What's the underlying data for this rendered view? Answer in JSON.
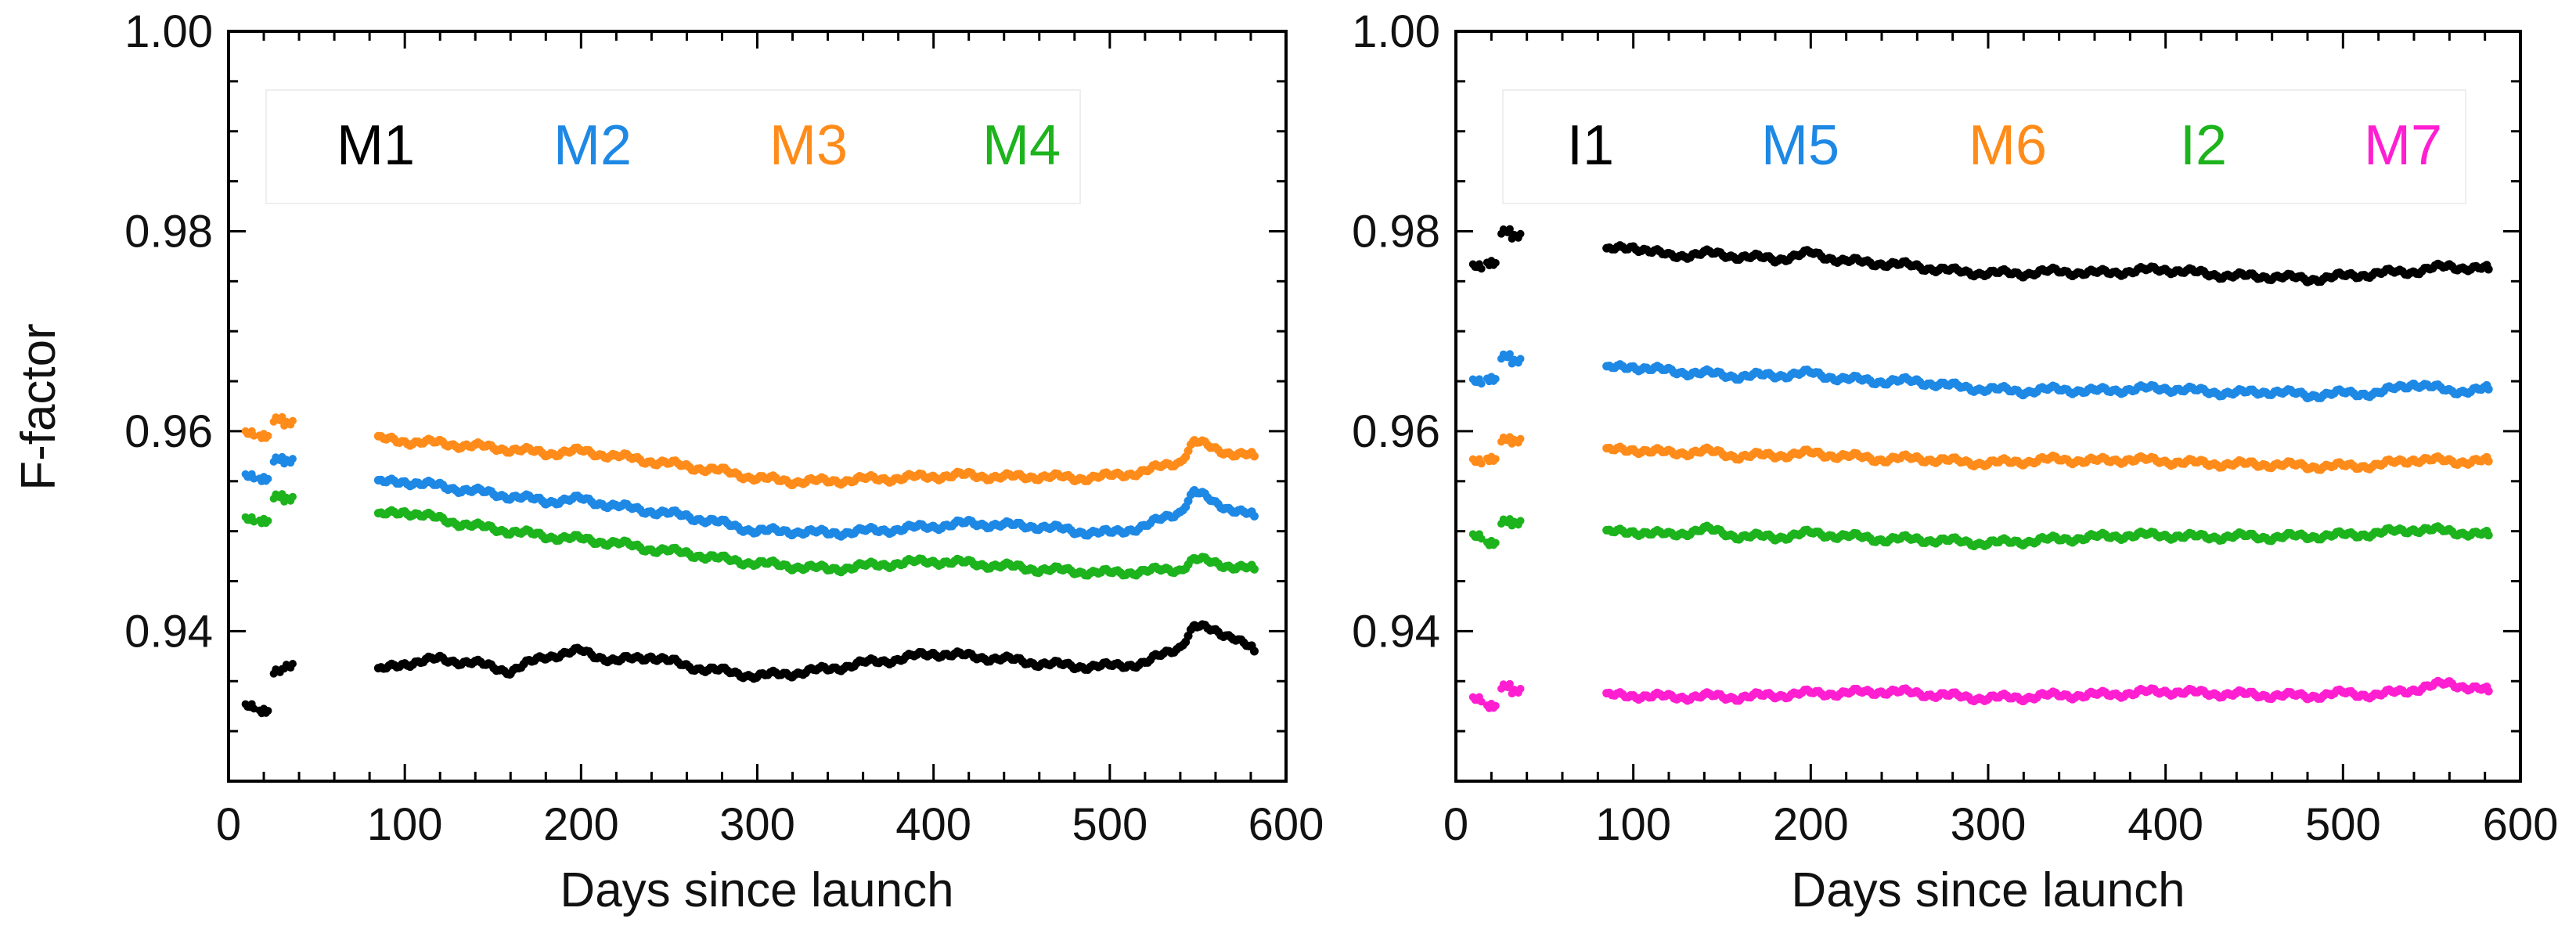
{
  "chart_data": [
    {
      "type": "scatter",
      "panel": "left",
      "title": "",
      "xlabel": "Days since launch",
      "ylabel": "F-factor",
      "xlim": [
        0,
        600
      ],
      "ylim": [
        0.925,
        1.0
      ],
      "xticks": [
        "0",
        "100",
        "200",
        "300",
        "400",
        "500",
        "600"
      ],
      "yticks": [
        "0.94",
        "0.96",
        "0.98",
        "1.00"
      ],
      "legend": {
        "placement": "top",
        "entries": [
          "M1",
          "M2",
          "M3",
          "M4"
        ]
      },
      "series": [
        {
          "name": "M1",
          "color": "#000000",
          "early": [
            [
              12,
              0.9325
            ],
            [
              20,
              0.932
            ],
            [
              28,
              0.936
            ],
            [
              34,
              0.9365
            ]
          ],
          "x": [
            85,
            100,
            120,
            140,
            160,
            180,
            200,
            220,
            240,
            260,
            280,
            300,
            320,
            340,
            360,
            380,
            400,
            420,
            440,
            460,
            480,
            500,
            520,
            540,
            548,
            560,
            570,
            582
          ],
          "y": [
            0.936,
            0.9368,
            0.9372,
            0.9368,
            0.936,
            0.9375,
            0.938,
            0.937,
            0.9375,
            0.9365,
            0.936,
            0.9355,
            0.9358,
            0.9362,
            0.9368,
            0.9372,
            0.9378,
            0.9375,
            0.9372,
            0.9368,
            0.9365,
            0.9365,
            0.9368,
            0.9385,
            0.9405,
            0.94,
            0.9395,
            0.938
          ]
        },
        {
          "name": "M2",
          "color": "#1e88e5",
          "early": [
            [
              12,
              0.9555
            ],
            [
              20,
              0.9552
            ],
            [
              28,
              0.9572
            ],
            [
              34,
              0.957
            ]
          ],
          "x": [
            85,
            100,
            120,
            140,
            160,
            180,
            200,
            220,
            240,
            260,
            280,
            300,
            320,
            340,
            360,
            380,
            400,
            420,
            440,
            460,
            480,
            500,
            520,
            540,
            548,
            560,
            570,
            582
          ],
          "y": [
            0.9548,
            0.955,
            0.9545,
            0.954,
            0.9535,
            0.953,
            0.9532,
            0.9525,
            0.952,
            0.9515,
            0.9508,
            0.95,
            0.95,
            0.9498,
            0.95,
            0.9502,
            0.9505,
            0.9508,
            0.9506,
            0.9505,
            0.95,
            0.9498,
            0.9505,
            0.952,
            0.954,
            0.9528,
            0.9522,
            0.9515
          ]
        },
        {
          "name": "M3",
          "color": "#ff8c1a",
          "early": [
            [
              12,
              0.9598
            ],
            [
              20,
              0.9595
            ],
            [
              28,
              0.9612
            ],
            [
              34,
              0.9608
            ]
          ],
          "x": [
            85,
            100,
            120,
            140,
            160,
            180,
            200,
            220,
            240,
            260,
            280,
            300,
            320,
            340,
            360,
            380,
            400,
            420,
            440,
            460,
            480,
            500,
            520,
            540,
            548,
            560,
            570,
            582
          ],
          "y": [
            0.9592,
            0.959,
            0.9588,
            0.9585,
            0.9582,
            0.9578,
            0.958,
            0.9575,
            0.957,
            0.9565,
            0.956,
            0.9553,
            0.955,
            0.955,
            0.9552,
            0.9553,
            0.9555,
            0.9556,
            0.9554,
            0.9555,
            0.9553,
            0.9555,
            0.956,
            0.957,
            0.959,
            0.9582,
            0.9578,
            0.9575
          ]
        },
        {
          "name": "M4",
          "color": "#1db31d",
          "early": [
            [
              12,
              0.9512
            ],
            [
              20,
              0.951
            ],
            [
              28,
              0.9535
            ],
            [
              34,
              0.9532
            ]
          ],
          "x": [
            85,
            100,
            120,
            140,
            160,
            180,
            200,
            220,
            240,
            260,
            280,
            300,
            320,
            340,
            360,
            380,
            400,
            420,
            440,
            460,
            480,
            500,
            520,
            540,
            548,
            560,
            570,
            582
          ],
          "y": [
            0.9515,
            0.952,
            0.9512,
            0.9505,
            0.95,
            0.9495,
            0.9492,
            0.9488,
            0.9482,
            0.9478,
            0.9472,
            0.9468,
            0.9465,
            0.9462,
            0.9465,
            0.9468,
            0.947,
            0.9468,
            0.9465,
            0.9462,
            0.946,
            0.9458,
            0.946,
            0.9462,
            0.9472,
            0.9468,
            0.9465,
            0.9462
          ]
        }
      ]
    },
    {
      "type": "scatter",
      "panel": "right",
      "title": "",
      "xlabel": "Days since launch",
      "ylabel": "",
      "xlim": [
        0,
        600
      ],
      "ylim": [
        0.925,
        1.0
      ],
      "xticks": [
        "0",
        "100",
        "200",
        "300",
        "400",
        "500",
        "600"
      ],
      "yticks": [
        "0.94",
        "0.96",
        "0.98",
        "1.00"
      ],
      "legend": {
        "placement": "top",
        "entries": [
          "I1",
          "M5",
          "M6",
          "I2",
          "M7"
        ]
      },
      "series": [
        {
          "name": "I1",
          "color": "#000000",
          "early": [
            [
              12,
              0.9765
            ],
            [
              20,
              0.9768
            ],
            [
              28,
              0.98
            ],
            [
              34,
              0.9795
            ]
          ],
          "x": [
            85,
            100,
            120,
            140,
            160,
            180,
            200,
            220,
            240,
            260,
            280,
            300,
            320,
            340,
            360,
            380,
            400,
            420,
            440,
            460,
            480,
            500,
            520,
            540,
            560,
            582
          ],
          "y": [
            0.978,
            0.9785,
            0.9775,
            0.9778,
            0.9775,
            0.9772,
            0.9778,
            0.977,
            0.9768,
            0.9765,
            0.976,
            0.9758,
            0.9758,
            0.976,
            0.9758,
            0.976,
            0.9762,
            0.9758,
            0.9755,
            0.9755,
            0.9752,
            0.9755,
            0.9758,
            0.976,
            0.9765,
            0.9762
          ]
        },
        {
          "name": "M5",
          "color": "#1e88e5",
          "early": [
            [
              12,
              0.965
            ],
            [
              20,
              0.9652
            ],
            [
              28,
              0.9675
            ],
            [
              34,
              0.967
            ]
          ],
          "x": [
            85,
            100,
            120,
            140,
            160,
            180,
            200,
            220,
            240,
            260,
            280,
            300,
            320,
            340,
            360,
            380,
            400,
            420,
            440,
            460,
            480,
            500,
            520,
            540,
            560,
            582
          ],
          "y": [
            0.9662,
            0.9665,
            0.966,
            0.9658,
            0.9655,
            0.9656,
            0.9658,
            0.9652,
            0.965,
            0.965,
            0.9645,
            0.9642,
            0.964,
            0.9642,
            0.964,
            0.9642,
            0.9643,
            0.964,
            0.9638,
            0.964,
            0.9636,
            0.9638,
            0.9638,
            0.9648,
            0.964,
            0.9642
          ]
        },
        {
          "name": "M6",
          "color": "#ff8c1a",
          "early": [
            [
              12,
              0.957
            ],
            [
              20,
              0.9572
            ],
            [
              28,
              0.9592
            ],
            [
              34,
              0.959
            ]
          ],
          "x": [
            85,
            100,
            120,
            140,
            160,
            180,
            200,
            220,
            240,
            260,
            280,
            300,
            320,
            340,
            360,
            380,
            400,
            420,
            440,
            460,
            480,
            500,
            520,
            540,
            560,
            582
          ],
          "y": [
            0.958,
            0.9582,
            0.9578,
            0.958,
            0.9575,
            0.9576,
            0.9578,
            0.9575,
            0.9572,
            0.9573,
            0.957,
            0.9568,
            0.957,
            0.9572,
            0.957,
            0.9572,
            0.957,
            0.9568,
            0.9567,
            0.9567,
            0.9565,
            0.9565,
            0.9566,
            0.9572,
            0.957,
            0.957
          ]
        },
        {
          "name": "I2",
          "color": "#1db31d",
          "early": [
            [
              12,
              0.9495
            ],
            [
              20,
              0.9488
            ],
            [
              28,
              0.951
            ],
            [
              34,
              0.9508
            ]
          ],
          "x": [
            85,
            100,
            120,
            140,
            160,
            180,
            200,
            220,
            240,
            260,
            280,
            300,
            320,
            340,
            360,
            380,
            400,
            420,
            440,
            460,
            480,
            500,
            520,
            540,
            560,
            582
          ],
          "y": [
            0.9498,
            0.95,
            0.9496,
            0.9502,
            0.9495,
            0.9494,
            0.9498,
            0.9495,
            0.9492,
            0.9492,
            0.949,
            0.9488,
            0.949,
            0.9492,
            0.9494,
            0.9496,
            0.9496,
            0.9494,
            0.9495,
            0.9494,
            0.9495,
            0.9496,
            0.9498,
            0.9502,
            0.95,
            0.9496
          ]
        },
        {
          "name": "M7",
          "color": "#ff1fd1",
          "early": [
            [
              12,
              0.9332
            ],
            [
              20,
              0.9325
            ],
            [
              28,
              0.9345
            ],
            [
              34,
              0.934
            ]
          ],
          "x": [
            85,
            100,
            120,
            140,
            160,
            180,
            200,
            220,
            240,
            260,
            280,
            300,
            320,
            340,
            360,
            380,
            400,
            420,
            440,
            460,
            480,
            500,
            520,
            540,
            560,
            582
          ],
          "y": [
            0.9335,
            0.9336,
            0.9334,
            0.9335,
            0.9334,
            0.9336,
            0.9338,
            0.9338,
            0.934,
            0.9338,
            0.9335,
            0.9333,
            0.9334,
            0.9336,
            0.9336,
            0.9338,
            0.934,
            0.9338,
            0.9337,
            0.9336,
            0.9335,
            0.9338,
            0.9336,
            0.9342,
            0.9348,
            0.934
          ]
        }
      ]
    }
  ]
}
